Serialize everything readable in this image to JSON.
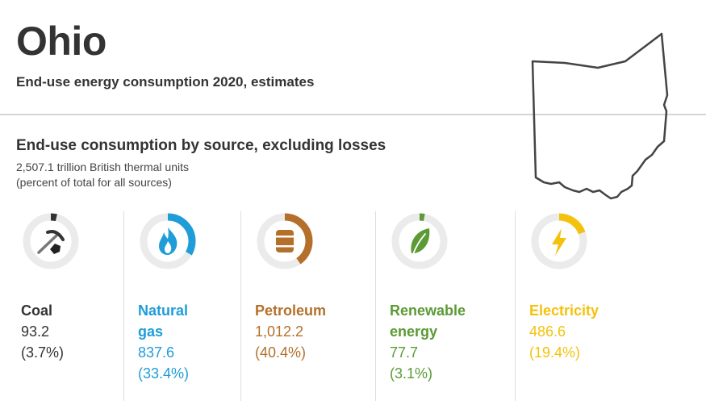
{
  "header": {
    "title": "Ohio",
    "subtitle": "End-use energy consumption 2020, estimates"
  },
  "section": {
    "title": "End-use consumption by source, excluding losses",
    "total": "2,507.1 trillion British thermal units",
    "note": "(percent of total for all sources)"
  },
  "colors": {
    "coal": "#333333",
    "natural_gas": "#1e9dd8",
    "petroleum": "#b4702a",
    "renewable": "#5b9a35",
    "electricity": "#f4c20d",
    "ring_track": "#ebebeb"
  },
  "chart_data": {
    "type": "donut-cards",
    "title": "End-use consumption by source, excluding losses",
    "units": "trillion British thermal units",
    "total": 2507.1,
    "sources": [
      {
        "key": "coal",
        "label_line1": "Coal",
        "label_line2": "",
        "value": "93.2",
        "percent_text": "(3.7%)",
        "percent": 3.7,
        "icon": "coal-pickaxe-icon"
      },
      {
        "key": "natural_gas",
        "label_line1": "Natural",
        "label_line2": "gas",
        "value": "837.6",
        "percent_text": "(33.4%)",
        "percent": 33.4,
        "icon": "flame-icon"
      },
      {
        "key": "petroleum",
        "label_line1": "Petroleum",
        "label_line2": "",
        "value": "1,012.2",
        "percent_text": "(40.4%)",
        "percent": 40.4,
        "icon": "oil-barrel-icon"
      },
      {
        "key": "renewable",
        "label_line1": "Renewable",
        "label_line2": "energy",
        "value": "77.7",
        "percent_text": "(3.1%)",
        "percent": 3.1,
        "icon": "leaf-icon"
      },
      {
        "key": "electricity",
        "label_line1": "Electricity",
        "label_line2": "",
        "value": "486.6",
        "percent_text": "(19.4%)",
        "percent": 19.4,
        "icon": "lightning-bolt-icon"
      }
    ]
  }
}
